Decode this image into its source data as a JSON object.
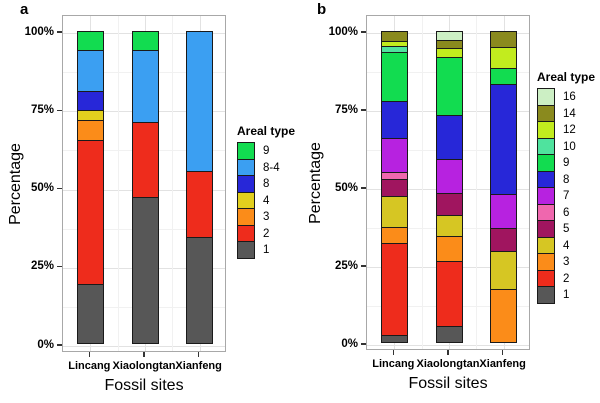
{
  "figure": {
    "background": "#ffffff"
  },
  "chart_data": [
    {
      "type": "bar",
      "stacked": true,
      "panel_letter": "a",
      "categories": [
        "Lincang",
        "Xiaolongtan",
        "Xianfeng"
      ],
      "xlabel": "Fossil sites",
      "ylabel": "Percentage",
      "ylim": [
        0,
        100
      ],
      "y_tick_values": [
        0,
        25,
        50,
        75,
        100
      ],
      "y_tick_labels": [
        "0%",
        "25%",
        "50%",
        "75%",
        "100%"
      ],
      "grid": "major and minor horizontal, faint vertical, white panel",
      "legend_title": "Areal type",
      "legend_position": "right",
      "bar_outline_color": "#1a1a1a",
      "series": [
        {
          "name": "1",
          "color": "#575757",
          "values": [
            19,
            47,
            34
          ]
        },
        {
          "name": "2",
          "color": "#ee2c1c",
          "values": [
            47,
            24,
            21
          ]
        },
        {
          "name": "3",
          "color": "#fb8c19",
          "values": [
            6,
            0,
            0
          ]
        },
        {
          "name": "4",
          "color": "#e2cf1e",
          "values": [
            3,
            0,
            0
          ]
        },
        {
          "name": "8",
          "color": "#2727d8",
          "values": [
            6,
            0,
            0
          ]
        },
        {
          "name": "8-4",
          "color": "#3b9ff2",
          "values": [
            13,
            23,
            45
          ]
        },
        {
          "name": "9",
          "color": "#12dc50",
          "values": [
            6,
            6,
            0
          ]
        }
      ]
    },
    {
      "type": "bar",
      "stacked": true,
      "panel_letter": "b",
      "categories": [
        "Lincang",
        "Xiaolongtan",
        "Xianfeng"
      ],
      "xlabel": "Fossil sites",
      "ylabel": "Percentage",
      "ylim": [
        0,
        100
      ],
      "y_tick_values": [
        0,
        25,
        50,
        75,
        100
      ],
      "y_tick_labels": [
        "0%",
        "25%",
        "50%",
        "75%",
        "100%"
      ],
      "grid": "major and minor horizontal, faint vertical, white panel",
      "legend_title": "Areal type",
      "legend_position": "right",
      "bar_outline_color": "#1a1a1a",
      "series": [
        {
          "name": "1",
          "color": "#575757",
          "values": [
            2,
            5,
            0
          ]
        },
        {
          "name": "2",
          "color": "#ee2c1c",
          "values": [
            30.5,
            21.5,
            0
          ]
        },
        {
          "name": "3",
          "color": "#fb8c19",
          "values": [
            5,
            8,
            17
          ]
        },
        {
          "name": "4",
          "color": "#d6c623",
          "values": [
            10,
            6.5,
            12.5
          ]
        },
        {
          "name": "5",
          "color": "#a0155f",
          "values": [
            5.5,
            7,
            7
          ]
        },
        {
          "name": "6",
          "color": "#ef67ae",
          "values": [
            2,
            0,
            0
          ]
        },
        {
          "name": "7",
          "color": "#b722e0",
          "values": [
            11,
            11,
            11
          ]
        },
        {
          "name": "8",
          "color": "#2727d8",
          "values": [
            12,
            14.5,
            36
          ]
        },
        {
          "name": "9",
          "color": "#12dc50",
          "values": [
            16,
            19,
            5
          ]
        },
        {
          "name": "10",
          "color": "#4fe39e",
          "values": [
            1.5,
            0,
            0
          ]
        },
        {
          "name": "12",
          "color": "#c2ec1e",
          "values": [
            1.5,
            2.5,
            6.5
          ]
        },
        {
          "name": "14",
          "color": "#8a8a1e",
          "values": [
            3,
            2.5,
            5
          ]
        },
        {
          "name": "16",
          "color": "#ccefc4",
          "values": [
            0,
            2.5,
            0
          ]
        }
      ]
    }
  ]
}
